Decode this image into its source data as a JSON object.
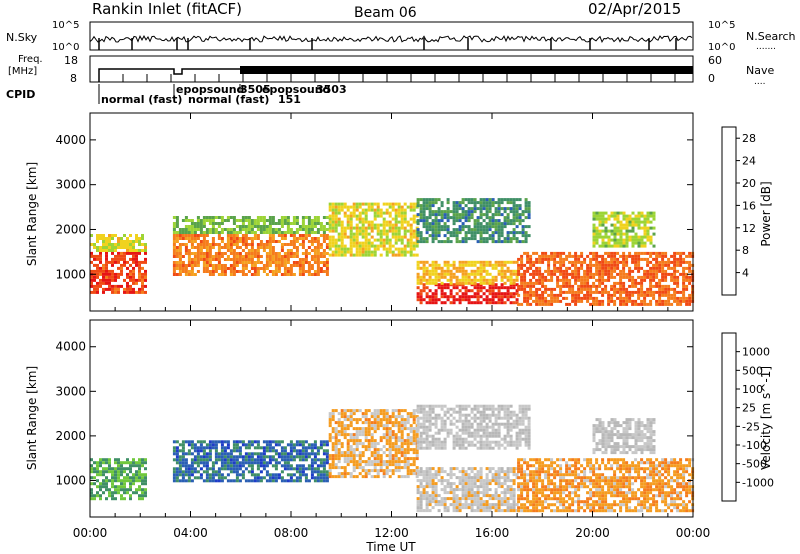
{
  "header": {
    "station": "Rankin Inlet (fitACF)",
    "beam": "Beam 06",
    "date": "02/Apr/2015"
  },
  "noise_panel": {
    "left_label": "N.Sky",
    "right_label": "N.Search",
    "right_dots": ".......",
    "tick_labels": [
      "10^5",
      "10^0"
    ],
    "right_tick_labels": [
      "10^5",
      "10^0"
    ]
  },
  "freq_panel": {
    "left_label_1": "Freq.",
    "left_label_2": "[MHz]",
    "right_label": "Nave",
    "right_dots": "....",
    "left_ticks": [
      "18",
      "8"
    ],
    "right_ticks": [
      "60",
      "0"
    ]
  },
  "cpid": {
    "label": "CPID",
    "modes": [
      "normal (fast)",
      "epopsound",
      "normal (fast)",
      "151",
      "3505",
      "epopsound",
      "3503"
    ]
  },
  "x_axis": {
    "label": "Time UT",
    "ticks": [
      "00:00",
      "04:00",
      "08:00",
      "12:00",
      "16:00",
      "20:00",
      "00:00"
    ]
  },
  "colors": {
    "power": [
      "#1428e6",
      "#2a5fb4",
      "#3f8f66",
      "#5aa34a",
      "#9cd436",
      "#f0d21e",
      "#f5a020",
      "#f57c1c",
      "#f04a14",
      "#e61414"
    ],
    "velocity": [
      "#e61414",
      "#f04a14",
      "#f57c1c",
      "#f59c20",
      "#c8c8c8",
      "#b8b8b8",
      "#70c83c",
      "#3f8f66",
      "#2a5fb4",
      "#1e3cc8"
    ]
  },
  "chart_data": [
    {
      "type": "heatmap",
      "title": "Power",
      "xlabel": "Time UT",
      "ylabel": "Slant Range [km]",
      "xlim": [
        0,
        24
      ],
      "ylim": [
        180,
        4600
      ],
      "y_ticks": [
        "1000",
        "2000",
        "3000",
        "4000"
      ],
      "colorbar": {
        "label": "Power [dB]",
        "ticks": [
          "4",
          "8",
          "12",
          "16",
          "20",
          "24",
          "28"
        ],
        "range": [
          0,
          30
        ]
      },
      "echo_regions": [
        {
          "t": [
            0.0,
            2.2
          ],
          "r": [
            600,
            1500
          ],
          "value": 26
        },
        {
          "t": [
            0.0,
            2.2
          ],
          "r": [
            1500,
            1900
          ],
          "value": 16
        },
        {
          "t": [
            3.3,
            9.5
          ],
          "r": [
            1000,
            1900
          ],
          "value": 22
        },
        {
          "t": [
            3.3,
            9.5
          ],
          "r": [
            1900,
            2300
          ],
          "value": 12
        },
        {
          "t": [
            9.5,
            13.0
          ],
          "r": [
            1400,
            2600
          ],
          "value": 16
        },
        {
          "t": [
            13.0,
            17.0
          ],
          "r": [
            350,
            800
          ],
          "value": 28
        },
        {
          "t": [
            13.0,
            17.0
          ],
          "r": [
            800,
            1300
          ],
          "value": 18
        },
        {
          "t": [
            13.0,
            17.5
          ],
          "r": [
            1700,
            2700
          ],
          "value": 8
        },
        {
          "t": [
            17.0,
            24.0
          ],
          "r": [
            350,
            1500
          ],
          "value": 24
        },
        {
          "t": [
            20.0,
            22.5
          ],
          "r": [
            1600,
            2400
          ],
          "value": 14
        }
      ]
    },
    {
      "type": "heatmap",
      "title": "Velocity",
      "xlabel": "Time UT",
      "ylabel": "Slant Range [km]",
      "xlim": [
        0,
        24
      ],
      "ylim": [
        180,
        4600
      ],
      "y_ticks": [
        "1000",
        "2000",
        "3000",
        "4000"
      ],
      "colorbar": {
        "label": "Velocity [m s^-1]",
        "ticks": [
          "1000",
          "500",
          "100",
          "25",
          "-25",
          "-100",
          "-500",
          "-1000"
        ],
        "range": [
          -1200,
          1200
        ]
      },
      "echo_regions": [
        {
          "t": [
            0.0,
            2.2
          ],
          "r": [
            600,
            1500
          ],
          "value": 500
        },
        {
          "t": [
            3.3,
            9.5
          ],
          "r": [
            1000,
            1900
          ],
          "value": 800
        },
        {
          "t": [
            9.5,
            13.0
          ],
          "r": [
            1100,
            2600
          ],
          "value": -300
        },
        {
          "t": [
            13.0,
            17.0
          ],
          "r": [
            350,
            1300
          ],
          "value": -100
        },
        {
          "t": [
            13.0,
            17.5
          ],
          "r": [
            1700,
            2700
          ],
          "value": 0
        },
        {
          "t": [
            17.0,
            24.0
          ],
          "r": [
            350,
            1500
          ],
          "value": -400
        },
        {
          "t": [
            20.0,
            22.5
          ],
          "r": [
            1600,
            2400
          ],
          "value": 0
        }
      ]
    }
  ]
}
